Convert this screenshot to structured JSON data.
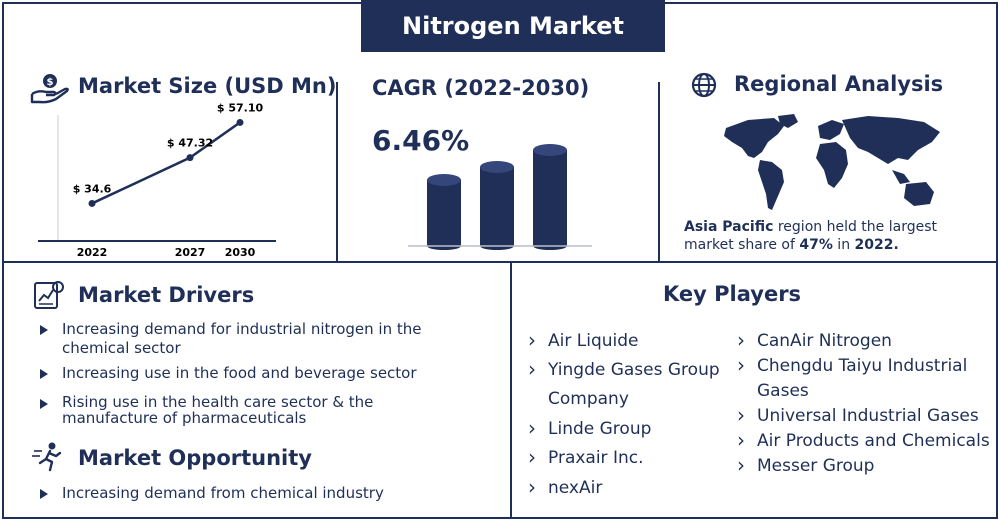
{
  "title": "Nitrogen Market",
  "market_size": {
    "title": "Market Size (USD Mn)",
    "icon": "money-hand-icon"
  },
  "chart_data": {
    "type": "line",
    "x": [
      "2022",
      "2027",
      "2030"
    ],
    "values": [
      34.6,
      47.32,
      57.1
    ],
    "data_labels": [
      "$ 34.6",
      "$ 47.32",
      "$ 57.10"
    ],
    "title": "Market Size (USD Mn)",
    "xlabel": "",
    "ylabel": "",
    "ylim": [
      25,
      60
    ]
  },
  "cagr": {
    "title": "CAGR (2022-2030)",
    "value": "6.46%"
  },
  "regional": {
    "title": "Regional Analysis",
    "icon": "globe-icon",
    "region": "Asia Pacific",
    "text_mid": " region held the largest market share of ",
    "share": "47%",
    "text_in": " in ",
    "year": "2022."
  },
  "drivers": {
    "title": "Market Drivers",
    "icon": "analytics-report-icon",
    "items": [
      "Increasing demand for industrial nitrogen in the chemical sector",
      "Increasing use in the food and beverage sector",
      "Rising use in the health care sector & the manufacture of pharmaceuticals"
    ]
  },
  "opportunity": {
    "title": "Market Opportunity",
    "icon": "running-person-icon",
    "items": [
      "Increasing demand from chemical industry"
    ]
  },
  "key_players": {
    "title": "Key Players",
    "col1": [
      "Air Liquide",
      "Yingde Gases Group Company",
      "Linde Group",
      "Praxair Inc.",
      "nexAir"
    ],
    "col2": [
      "CanAir Nitrogen",
      "Chengdu Taiyu Industrial Gases",
      "Universal Industrial Gases",
      "Air Products and Chemicals",
      "Messer Group"
    ]
  },
  "colors": {
    "navy": "#1f2f57",
    "white": "#ffffff"
  }
}
